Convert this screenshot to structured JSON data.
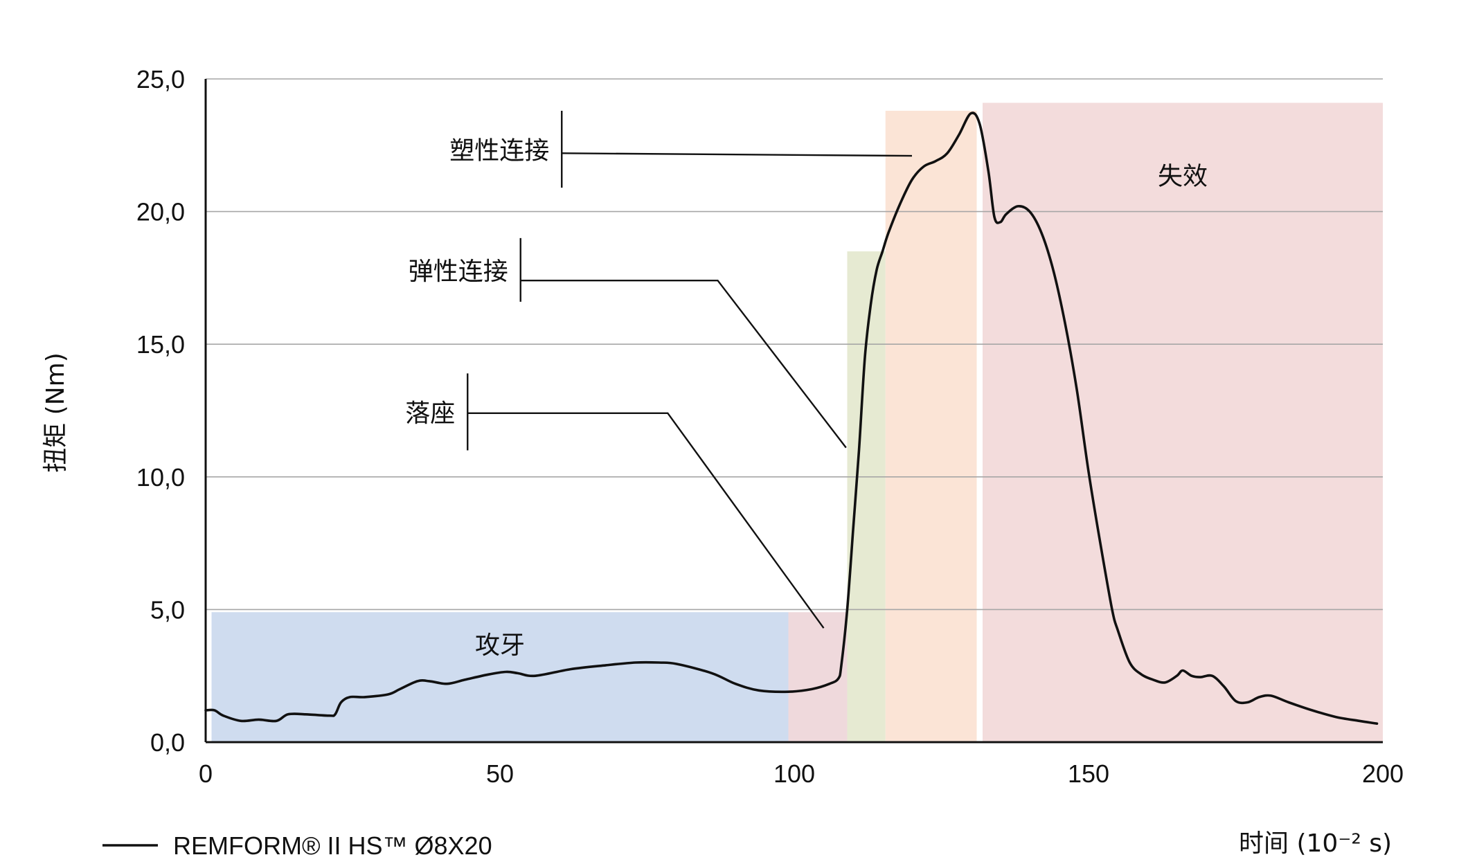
{
  "chart_data": {
    "type": "line",
    "title": "",
    "ylabel": "扭矩 (Nm)",
    "xlabel": "时间 (10⁻² s)",
    "xlim": [
      0,
      200
    ],
    "ylim": [
      0,
      25
    ],
    "x_ticks": [
      {
        "value": 0,
        "label": "0"
      },
      {
        "value": 50,
        "label": "50"
      },
      {
        "value": 100,
        "label": "100"
      },
      {
        "value": 150,
        "label": "150"
      },
      {
        "value": 200,
        "label": "200"
      }
    ],
    "y_ticks": [
      {
        "value": 0,
        "label": "0,0"
      },
      {
        "value": 5,
        "label": "5,0"
      },
      {
        "value": 10,
        "label": "10,0"
      },
      {
        "value": 15,
        "label": "15,0"
      },
      {
        "value": 20,
        "label": "20,0"
      },
      {
        "value": 25,
        "label": "25,0"
      }
    ],
    "grid": "horizontal",
    "legend_position": "bottom-left",
    "series": [
      {
        "name": "REMFORM® II HS™ Ø8X20",
        "color": "#111111",
        "points": [
          [
            0,
            1.2
          ],
          [
            1.5,
            1.2
          ],
          [
            3,
            1.0
          ],
          [
            6,
            0.8
          ],
          [
            9,
            0.85
          ],
          [
            12,
            0.8
          ],
          [
            14,
            1.05
          ],
          [
            17,
            1.05
          ],
          [
            21,
            1.0
          ],
          [
            22,
            1.05
          ],
          [
            23,
            1.5
          ],
          [
            24.5,
            1.7
          ],
          [
            27,
            1.7
          ],
          [
            31,
            1.8
          ],
          [
            33,
            2.0
          ],
          [
            36,
            2.3
          ],
          [
            38,
            2.3
          ],
          [
            41,
            2.2
          ],
          [
            44,
            2.35
          ],
          [
            48,
            2.55
          ],
          [
            51,
            2.65
          ],
          [
            53,
            2.6
          ],
          [
            56,
            2.5
          ],
          [
            62,
            2.75
          ],
          [
            68,
            2.9
          ],
          [
            73,
            3.0
          ],
          [
            77,
            3.0
          ],
          [
            80,
            2.95
          ],
          [
            86,
            2.6
          ],
          [
            90,
            2.2
          ],
          [
            94,
            1.95
          ],
          [
            99,
            1.9
          ],
          [
            103,
            2.0
          ],
          [
            106,
            2.2
          ],
          [
            107.5,
            2.4
          ],
          [
            108,
            2.9
          ],
          [
            109,
            5.0
          ],
          [
            110,
            8.0
          ],
          [
            111,
            11.0
          ],
          [
            112,
            14.5
          ],
          [
            113,
            16.5
          ],
          [
            114,
            17.8
          ],
          [
            115,
            18.5
          ],
          [
            116,
            19.2
          ],
          [
            118,
            20.3
          ],
          [
            120,
            21.2
          ],
          [
            122,
            21.7
          ],
          [
            124,
            21.9
          ],
          [
            126,
            22.2
          ],
          [
            128,
            22.9
          ],
          [
            130,
            23.7
          ],
          [
            131.5,
            23.3
          ],
          [
            133,
            21.5
          ],
          [
            134,
            19.8
          ],
          [
            135,
            19.6
          ],
          [
            136,
            19.9
          ],
          [
            138,
            20.2
          ],
          [
            140,
            20.0
          ],
          [
            142,
            19.2
          ],
          [
            144,
            17.8
          ],
          [
            146,
            15.8
          ],
          [
            148,
            13.3
          ],
          [
            150,
            10.2
          ],
          [
            152,
            7.5
          ],
          [
            154,
            5.0
          ],
          [
            155,
            4.2
          ],
          [
            157,
            3.0
          ],
          [
            159,
            2.55
          ],
          [
            161,
            2.35
          ],
          [
            163,
            2.25
          ],
          [
            165,
            2.5
          ],
          [
            166,
            2.7
          ],
          [
            167.5,
            2.5
          ],
          [
            169,
            2.45
          ],
          [
            171,
            2.5
          ],
          [
            173,
            2.1
          ],
          [
            175,
            1.55
          ],
          [
            177,
            1.5
          ],
          [
            179,
            1.7
          ],
          [
            181,
            1.75
          ],
          [
            184,
            1.5
          ],
          [
            188,
            1.2
          ],
          [
            192,
            0.95
          ],
          [
            196,
            0.8
          ],
          [
            199,
            0.7
          ]
        ]
      }
    ],
    "zones": [
      {
        "label": "攻牙",
        "x0": 1,
        "x1": 99,
        "y0": 0,
        "y1": 4.9,
        "color": "#cfdcef"
      },
      {
        "label": "",
        "x0": 99,
        "x1": 109,
        "y0": 0,
        "y1": 4.9,
        "color": "#efd9dc"
      },
      {
        "label": "",
        "x0": 109,
        "x1": 115.5,
        "y0": 0,
        "y1": 18.5,
        "color": "#e6ead2"
      },
      {
        "label": "",
        "x0": 115.5,
        "x1": 131,
        "y0": 0,
        "y1": 23.8,
        "color": "#fbe4d6"
      },
      {
        "label": "失效",
        "x0": 132,
        "x1": 200,
        "y0": 0,
        "y1": 24.1,
        "color": "#f3dcdc"
      }
    ],
    "annotations": [
      {
        "label": "塑性连接",
        "bar_x": 60.5,
        "bar_y": [
          20.9,
          23.8
        ],
        "path": [
          [
            60.5,
            22.2
          ],
          [
            120,
            22.1
          ]
        ]
      },
      {
        "label": "弹性连接",
        "bar_x": 53.5,
        "bar_y": [
          16.6,
          19.0
        ],
        "path": [
          [
            53.5,
            17.4
          ],
          [
            87,
            17.4
          ],
          [
            108.8,
            11.1
          ]
        ]
      },
      {
        "label": "落座",
        "bar_x": 44.5,
        "bar_y": [
          11.0,
          13.9
        ],
        "path": [
          [
            44.5,
            12.4
          ],
          [
            78.5,
            12.4
          ],
          [
            105,
            4.3
          ]
        ]
      }
    ]
  }
}
